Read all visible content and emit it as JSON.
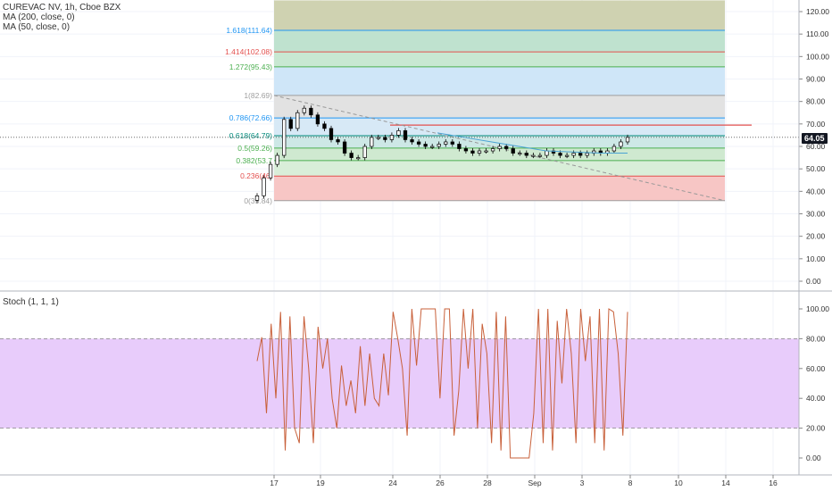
{
  "legend": {
    "title": "CUREVAC NV, 1h, Cboe BZX",
    "ma200": "MA (200, close, 0)",
    "ma50": "MA (50, close, 0)",
    "stoch": "Stoch (1, 1, 1)"
  },
  "last_price": "64.05",
  "colors": {
    "up": "#ffffff",
    "down": "#000000",
    "fib_red": "#e3504e",
    "fib_green": "#4caf50",
    "fib_blue": "#2196f3",
    "fib_grey": "#9e9e9e",
    "fib_olive": "#8d8d55",
    "stoch_line": "#c8603a",
    "stoch_band": "#e8ccfb",
    "ma_line": "#4aa3d4"
  },
  "chart_data": [
    {
      "type": "candlestick",
      "title": "CUREVAC NV, 1h, Cboe BZX",
      "y_axis_ticks": [
        "120.00",
        "110.00",
        "100.00",
        "90.00",
        "80.00",
        "70.00",
        "60.00",
        "50.00",
        "40.00",
        "30.00",
        "20.00",
        "10.00",
        "0.00"
      ],
      "x_axis_ticks": [
        "17",
        "19",
        "24",
        "26",
        "28",
        "Sep",
        "3",
        "8",
        "10",
        "14",
        "16"
      ],
      "ylim": [
        0,
        120
      ],
      "fib_levels": [
        {
          "label": "0(35.84)",
          "value": 35.84,
          "color": "#9e9e9e"
        },
        {
          "label": "0.236(46.",
          "value": 46.8,
          "color": "#e3504e"
        },
        {
          "label": "0.382(53.7",
          "value": 53.7,
          "color": "#4caf50"
        },
        {
          "label": "0.5(59.26)",
          "value": 59.26,
          "color": "#4caf50"
        },
        {
          "label": "0.618(64.79)",
          "value": 64.79,
          "color": "#00897b"
        },
        {
          "label": "0.786(72.66)",
          "value": 72.66,
          "color": "#2196f3"
        },
        {
          "label": "1(82.69)",
          "value": 82.69,
          "color": "#9e9e9e"
        },
        {
          "label": "1.272(95.43)",
          "value": 95.43,
          "color": "#4caf50"
        },
        {
          "label": "1.414(102.08)",
          "value": 102.08,
          "color": "#e3504e"
        },
        {
          "label": "1.618(111.64)",
          "value": 111.64,
          "color": "#2196f3"
        }
      ],
      "price_series_close": [
        38,
        46,
        52,
        56,
        72,
        68,
        75,
        77,
        74,
        70,
        68,
        63,
        62,
        57,
        55,
        55,
        60,
        64,
        64,
        63,
        65,
        67,
        63,
        62,
        61,
        60,
        60,
        61,
        62,
        61,
        59,
        58,
        57,
        58,
        58,
        59,
        60,
        59,
        57,
        57,
        56,
        56,
        56,
        58,
        57,
        56,
        56,
        57,
        56,
        57,
        58,
        57,
        58,
        60,
        62,
        64
      ],
      "horizontal_line_red": 69.5,
      "last_price": 64.05
    },
    {
      "type": "line",
      "title": "Stoch (1, 1, 1)",
      "y_axis_ticks": [
        "100.00",
        "80.00",
        "60.00",
        "40.00",
        "20.00",
        "0.00"
      ],
      "ylim": [
        0,
        100
      ],
      "band": [
        20,
        80
      ],
      "values": [
        65,
        81,
        30,
        90,
        40,
        98,
        5,
        95,
        20,
        10,
        95,
        60,
        10,
        88,
        60,
        80,
        40,
        20,
        62,
        35,
        52,
        30,
        75,
        35,
        70,
        40,
        35,
        70,
        42,
        98,
        80,
        60,
        15,
        100,
        62,
        100,
        100,
        100,
        100,
        40,
        100,
        100,
        15,
        45,
        100,
        60,
        100,
        20,
        90,
        70,
        10,
        98,
        5,
        95,
        0,
        0,
        0,
        0,
        0,
        30,
        100,
        10,
        100,
        5,
        92,
        50,
        100,
        70,
        10,
        100,
        65,
        95,
        10,
        100,
        5,
        100,
        98,
        70,
        15,
        98
      ]
    }
  ]
}
